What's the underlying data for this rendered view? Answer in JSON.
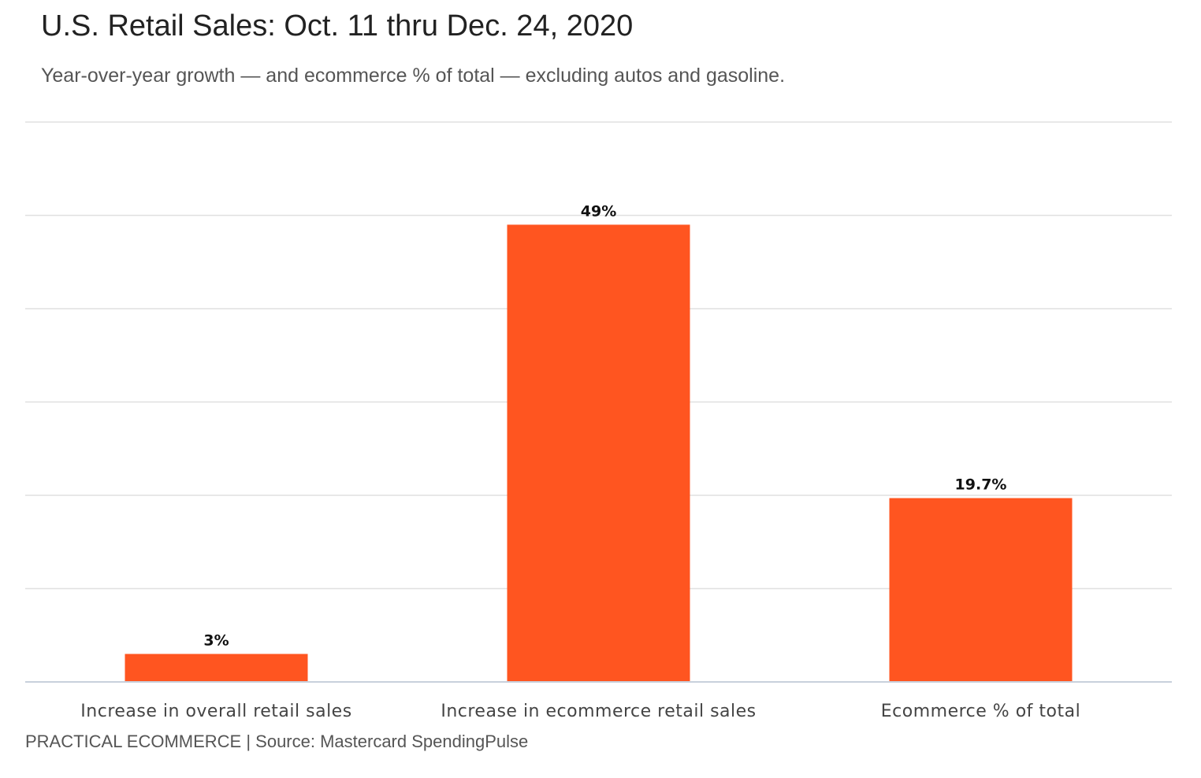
{
  "header": {
    "title": "U.S. Retail Sales: Oct. 11 thru Dec. 24, 2020",
    "subtitle": "Year-over-year growth — and ecommerce % of total — excluding autos and gasoline."
  },
  "footer": {
    "credit": "PRACTICAL ECOMMERCE | Source: Mastercard SpendingPulse"
  },
  "colors": {
    "bar": "#ff5520"
  },
  "chart_data": {
    "type": "bar",
    "title": "U.S. Retail Sales: Oct. 11 thru Dec. 24, 2020",
    "subtitle": "Year-over-year growth — and ecommerce % of total — excluding autos and gasoline.",
    "categories": [
      "Increase in overall retail sales",
      "Increase in ecommerce retail sales",
      "Ecommerce % of total"
    ],
    "values": [
      3,
      49,
      19.7
    ],
    "data_labels": [
      "3%",
      "49%",
      "19.7%"
    ],
    "xlabel": "",
    "ylabel": "",
    "ylim": [
      0,
      60
    ],
    "gridlines": [
      0,
      10,
      20,
      30,
      40,
      50,
      60
    ],
    "grid": true,
    "legend": "none",
    "y_tick_labels_visible": false
  }
}
